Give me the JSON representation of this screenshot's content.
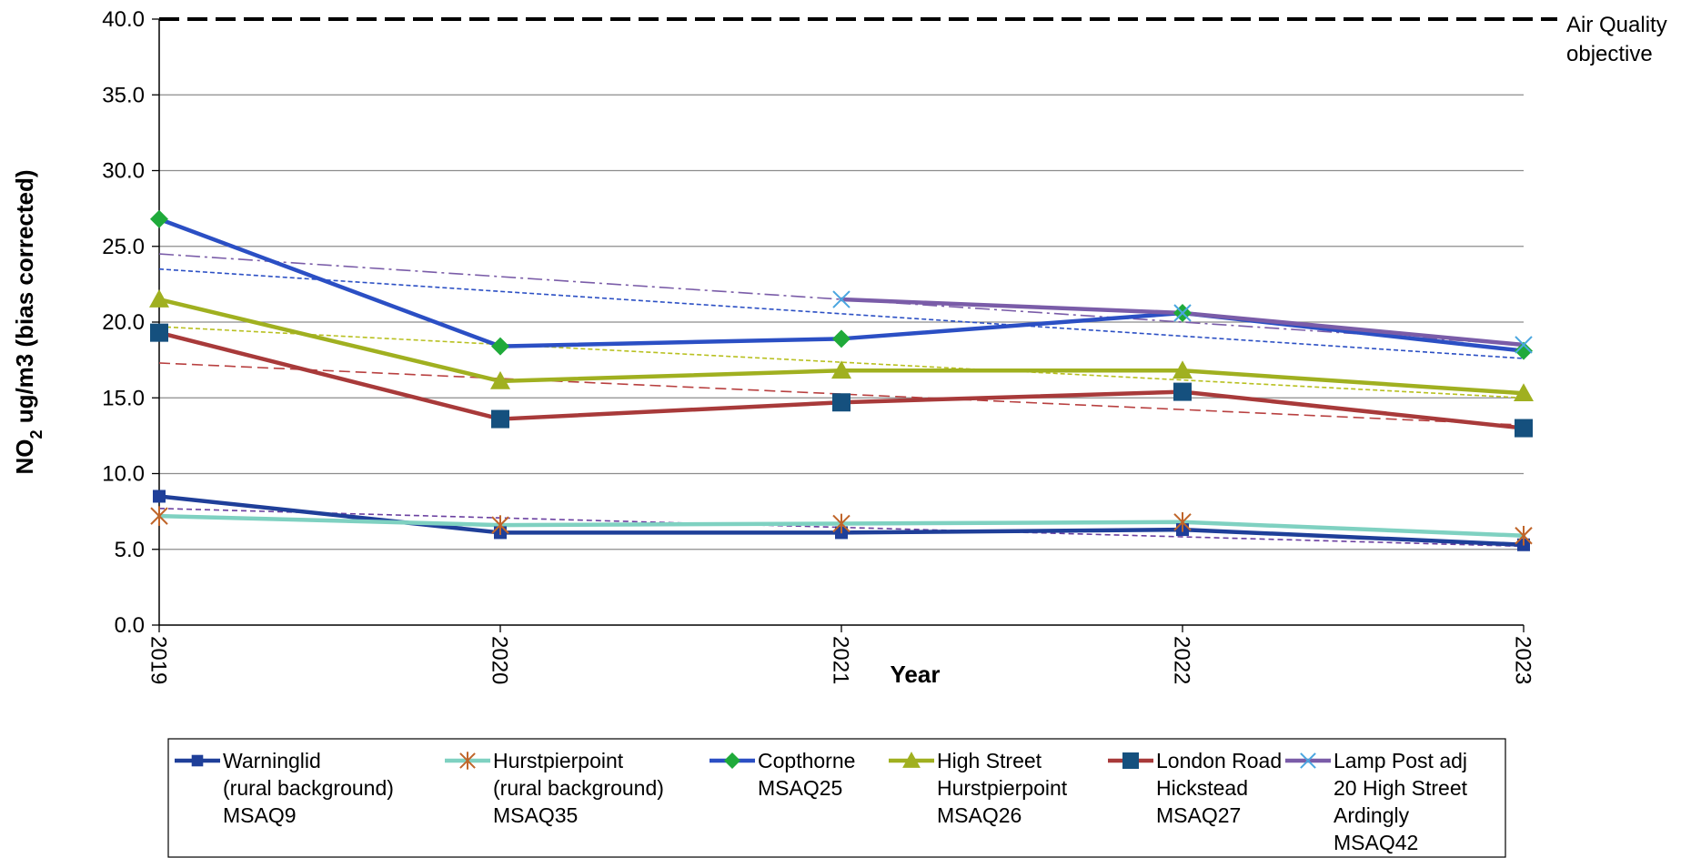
{
  "chart_data": {
    "type": "line",
    "xlabel": "Year",
    "ylabel": "NO2 ug/m3 (bias corrected)",
    "ylim": [
      0,
      40
    ],
    "yticks": [
      "0.0",
      "5.0",
      "10.0",
      "15.0",
      "20.0",
      "25.0",
      "30.0",
      "35.0",
      "40.0"
    ],
    "categories": [
      "2019",
      "2020",
      "2021",
      "2022",
      "2023"
    ],
    "grid": "horizontal",
    "legend_position": "bottom",
    "objective": {
      "value": 40,
      "label_lines": [
        "Air Quality",
        "objective"
      ]
    },
    "series": [
      {
        "name": "Warninglid (rural background) MSAQ9",
        "label_lines": [
          "Warninglid",
          "(rural background)",
          "MSAQ9"
        ],
        "color": "#1f3f99",
        "marker": "square-small",
        "values": [
          8.5,
          6.1,
          6.1,
          6.3,
          5.3
        ],
        "trend": [
          7.7,
          5.2
        ],
        "trend_color": "#6a3fa0"
      },
      {
        "name": "Hurstpierpoint (rural background) MSAQ35",
        "label_lines": [
          "Hurstpierpoint",
          "(rural background)",
          "MSAQ35"
        ],
        "color": "#7fd1c1",
        "marker": "asterisk",
        "marker_color": "#c0652a",
        "values": [
          7.2,
          6.6,
          6.7,
          6.8,
          5.9
        ],
        "trend": [
          null,
          null
        ],
        "trend_color": "#7fd1c1"
      },
      {
        "name": "Copthorne MSAQ25",
        "label_lines": [
          "Copthorne",
          "MSAQ25"
        ],
        "color": "#2b4fc4",
        "marker": "diamond",
        "marker_color": "#1faa3a",
        "values": [
          26.8,
          18.4,
          18.9,
          20.6,
          18.1
        ],
        "trend": [
          23.5,
          17.6
        ],
        "trend_color": "#2b4fc4"
      },
      {
        "name": "High Street Hurstpierpoint MSAQ26",
        "label_lines": [
          "High Street",
          "Hurstpierpoint",
          "MSAQ26"
        ],
        "color": "#a0b020",
        "marker": "triangle",
        "values": [
          21.5,
          16.1,
          16.8,
          16.8,
          15.3
        ],
        "trend": [
          19.7,
          15.0
        ],
        "trend_color": "#b8c020"
      },
      {
        "name": "London Road Hickstead MSAQ27",
        "label_lines": [
          "London Road",
          "Hickstead",
          "MSAQ27"
        ],
        "color": "#a83a3a",
        "marker": "square",
        "marker_color": "#15507e",
        "values": [
          19.3,
          13.6,
          14.7,
          15.4,
          13.0
        ],
        "trend": [
          17.3,
          13.2
        ],
        "trend_color": "#b84040"
      },
      {
        "name": "Lamp Post adj 20 High Street Ardingly MSAQ42",
        "label_lines": [
          "Lamp Post adj",
          "20 High Street",
          "Ardingly",
          "MSAQ42"
        ],
        "color": "#7a5ca8",
        "marker": "cross",
        "marker_color": "#4aa6e0",
        "values": [
          null,
          null,
          21.5,
          20.6,
          18.5
        ],
        "trend": [
          24.5,
          18.5
        ],
        "trend_color": "#7a5ca8"
      }
    ]
  }
}
